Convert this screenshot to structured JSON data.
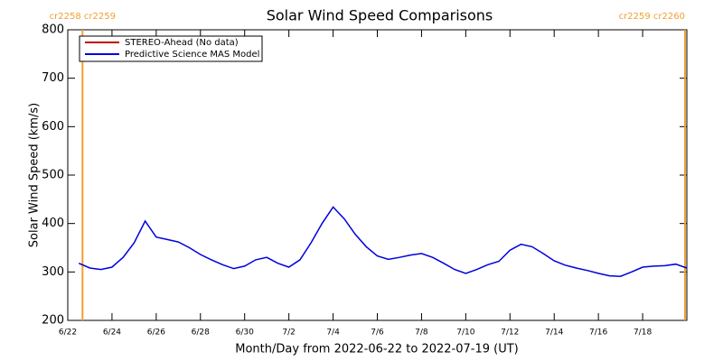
{
  "chart_data": {
    "type": "line",
    "title": "Solar Wind Speed Comparisons",
    "xlabel": "Month/Day from 2022-06-22 to 2022-07-19 (UT)",
    "ylabel": "Solar Wind Speed (km/s)",
    "x": [
      "2022-06-22T12:00",
      "2022-06-23T00:00",
      "2022-06-23T12:00",
      "2022-06-24T00:00",
      "2022-06-24T12:00",
      "2022-06-25T00:00",
      "2022-06-25T12:00",
      "2022-06-26T00:00",
      "2022-06-26T12:00",
      "2022-06-27T00:00",
      "2022-06-27T12:00",
      "2022-06-28T00:00",
      "2022-06-28T12:00",
      "2022-06-29T00:00",
      "2022-06-29T12:00",
      "2022-06-30T00:00",
      "2022-06-30T12:00",
      "2022-07-01T00:00",
      "2022-07-01T12:00",
      "2022-07-02T00:00",
      "2022-07-02T12:00",
      "2022-07-03T00:00",
      "2022-07-03T12:00",
      "2022-07-04T00:00",
      "2022-07-04T12:00",
      "2022-07-05T00:00",
      "2022-07-05T12:00",
      "2022-07-06T00:00",
      "2022-07-06T12:00",
      "2022-07-07T00:00",
      "2022-07-07T12:00",
      "2022-07-08T00:00",
      "2022-07-08T12:00",
      "2022-07-09T00:00",
      "2022-07-09T12:00",
      "2022-07-10T00:00",
      "2022-07-10T12:00",
      "2022-07-11T00:00",
      "2022-07-11T12:00",
      "2022-07-12T00:00",
      "2022-07-12T12:00",
      "2022-07-13T00:00",
      "2022-07-13T12:00",
      "2022-07-14T00:00",
      "2022-07-14T12:00",
      "2022-07-15T00:00",
      "2022-07-15T12:00",
      "2022-07-16T00:00",
      "2022-07-16T12:00",
      "2022-07-17T00:00",
      "2022-07-17T12:00",
      "2022-07-18T00:00",
      "2022-07-18T12:00",
      "2022-07-19T00:00",
      "2022-07-19T12:00",
      "2022-07-20T00:00"
    ],
    "series": [
      {
        "name": "STEREO-Ahead (No data)",
        "color": "#c00000",
        "values": [
          null,
          null,
          null,
          null,
          null,
          null,
          null,
          null,
          null,
          null,
          null,
          null,
          null,
          null,
          null,
          null,
          null,
          null,
          null,
          null,
          null,
          null,
          null,
          null,
          null,
          null,
          null,
          null,
          null,
          null,
          null,
          null,
          null,
          null,
          null,
          null,
          null,
          null,
          null,
          null,
          null,
          null,
          null,
          null,
          null,
          null,
          null,
          null,
          null,
          null,
          null,
          null,
          null,
          null,
          null,
          null
        ]
      },
      {
        "name": "Predictive Science MAS Model",
        "color": "#0000dd",
        "values": [
          318,
          308,
          305,
          310,
          330,
          360,
          405,
          372,
          367,
          362,
          350,
          336,
          325,
          315,
          307,
          312,
          325,
          330,
          318,
          310,
          325,
          360,
          400,
          434,
          410,
          378,
          352,
          333,
          326,
          330,
          335,
          338,
          330,
          318,
          305,
          297,
          305,
          315,
          322,
          345,
          357,
          352,
          338,
          323,
          314,
          308,
          303,
          297,
          292,
          291,
          300,
          310,
          312,
          313,
          316,
          308
        ]
      }
    ],
    "xlim": [
      "2022-06-22T00:00",
      "2022-07-20T00:00"
    ],
    "xticks": [
      {
        "value": "2022-06-22T00:00",
        "label": "6/22"
      },
      {
        "value": "2022-06-24T00:00",
        "label": "6/24"
      },
      {
        "value": "2022-06-26T00:00",
        "label": "6/26"
      },
      {
        "value": "2022-06-28T00:00",
        "label": "6/28"
      },
      {
        "value": "2022-06-30T00:00",
        "label": "6/30"
      },
      {
        "value": "2022-07-02T00:00",
        "label": "7/2"
      },
      {
        "value": "2022-07-04T00:00",
        "label": "7/4"
      },
      {
        "value": "2022-07-06T00:00",
        "label": "7/6"
      },
      {
        "value": "2022-07-08T00:00",
        "label": "7/8"
      },
      {
        "value": "2022-07-10T00:00",
        "label": "7/10"
      },
      {
        "value": "2022-07-12T00:00",
        "label": "7/12"
      },
      {
        "value": "2022-07-14T00:00",
        "label": "7/14"
      },
      {
        "value": "2022-07-16T00:00",
        "label": "7/16"
      },
      {
        "value": "2022-07-18T00:00",
        "label": "7/18"
      }
    ],
    "ylim": [
      200,
      800
    ],
    "yticks": [
      200,
      300,
      400,
      500,
      600,
      700,
      800
    ],
    "legend": "upper-left",
    "annotations": [
      {
        "text": "cr2258 cr2259",
        "x": "2022-06-22T16:00",
        "color": "#f0a030"
      },
      {
        "text": "cr2259 cr2260",
        "x": "2022-07-19T22:00",
        "color": "#f0a030"
      }
    ]
  }
}
